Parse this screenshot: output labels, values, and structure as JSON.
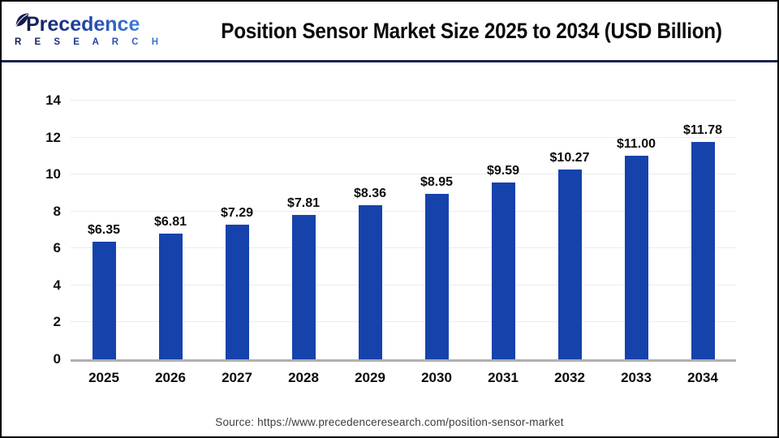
{
  "header": {
    "logo_name": "Precedence",
    "logo_subname": "R E S E A R C H"
  },
  "chart_data": {
    "type": "bar",
    "title": "Position Sensor Market Size 2025 to 2034 (USD Billion)",
    "categories": [
      "2025",
      "2026",
      "2027",
      "2028",
      "2029",
      "2030",
      "2031",
      "2032",
      "2033",
      "2034"
    ],
    "values": [
      6.35,
      6.81,
      7.29,
      7.81,
      8.36,
      8.95,
      9.59,
      10.27,
      11.0,
      11.78
    ],
    "value_labels": [
      "$6.35",
      "$6.81",
      "$7.29",
      "$7.81",
      "$8.36",
      "$8.95",
      "$9.59",
      "$10.27",
      "$11.00",
      "$11.78"
    ],
    "xlabel": "",
    "ylabel": "",
    "ylim": [
      0,
      14
    ],
    "yticks": [
      0,
      2,
      4,
      6,
      8,
      10,
      12,
      14
    ],
    "grid": true,
    "legend": false,
    "bar_color": "#1642ab"
  },
  "footer": {
    "source": "Source: https://www.precedenceresearch.com/position-sensor-market"
  },
  "colors": {
    "bar": "#1642ab",
    "separator": "#1b2350",
    "gridline": "#ececec",
    "axis_line": "#b0b0b0",
    "logo_navy": "#131c4e",
    "logo_blue": "#3f7dd9"
  }
}
